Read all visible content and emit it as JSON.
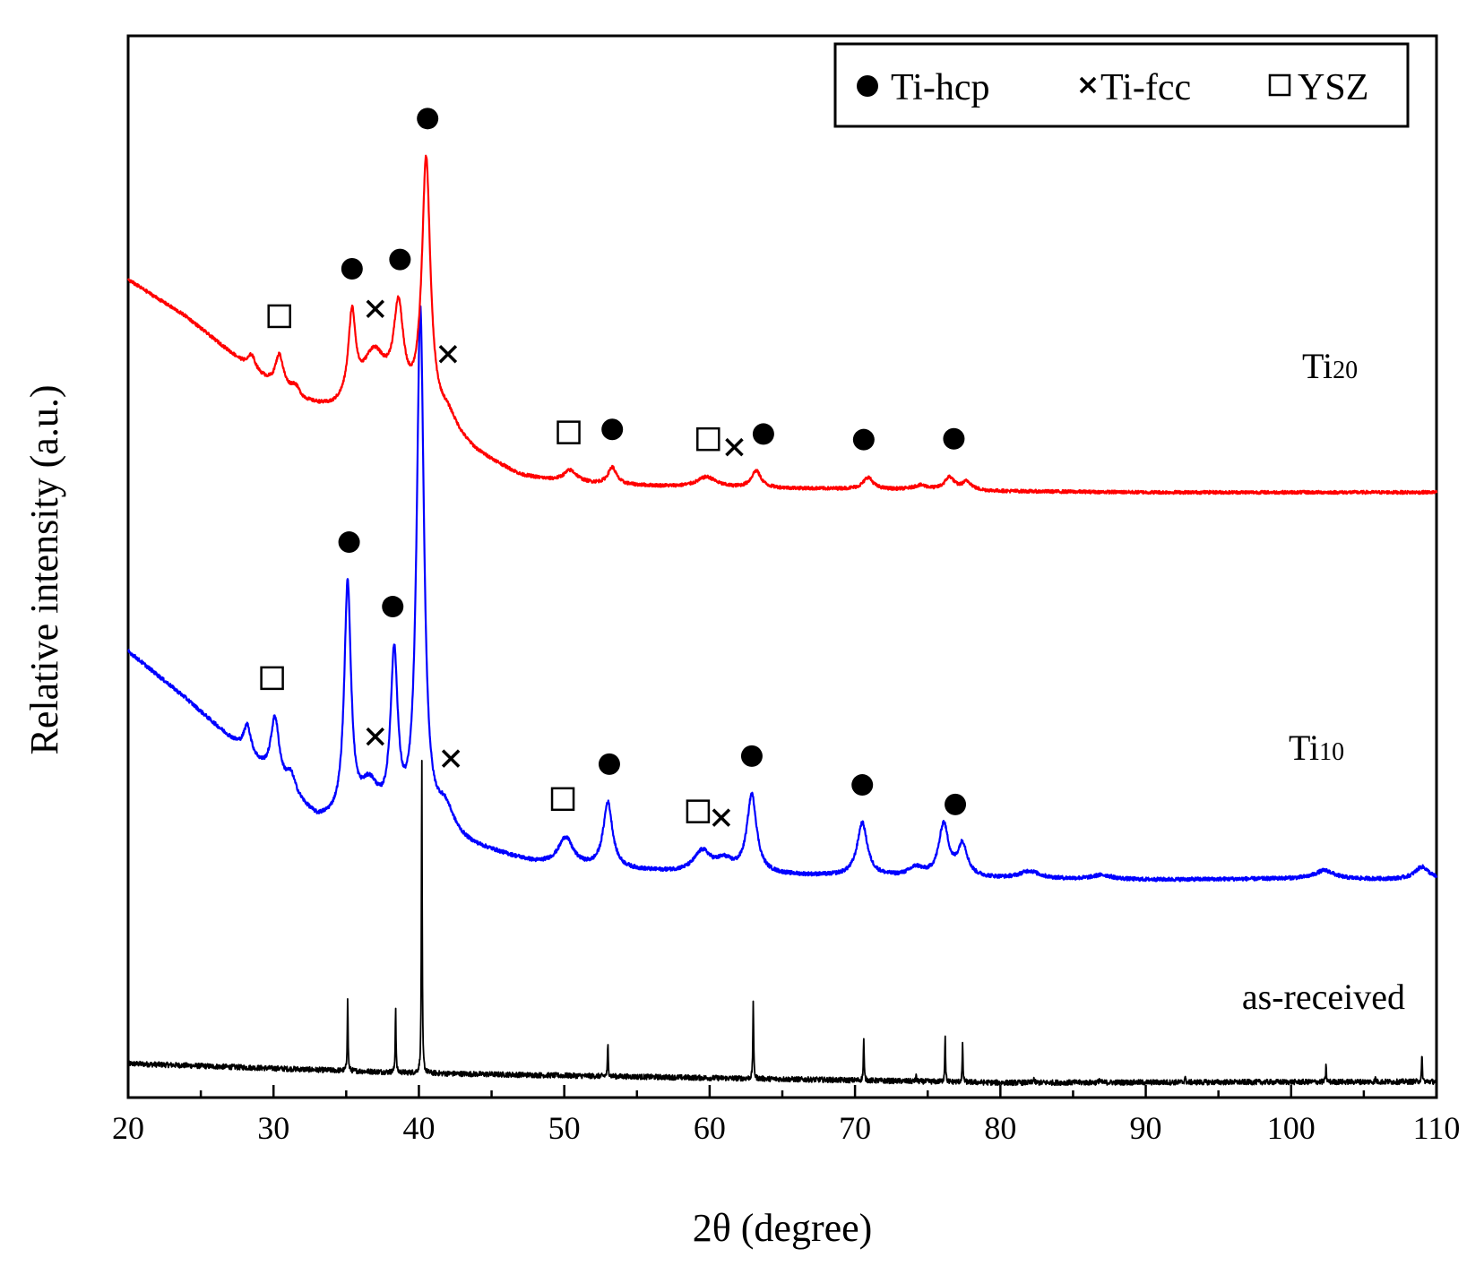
{
  "chart_data": {
    "type": "line",
    "title": "",
    "xlabel": "2θ (degree)",
    "ylabel": "Relative intensity (a.u.)",
    "xlim": [
      20,
      110
    ],
    "x_ticks": [
      20,
      30,
      40,
      50,
      60,
      70,
      80,
      90,
      100,
      110
    ],
    "x_minor_step": 5,
    "grid": false,
    "legend": {
      "placement": "top-right",
      "entries": [
        {
          "marker": "filled-circle",
          "label": "Ti-hcp"
        },
        {
          "marker": "cross",
          "label": "Ti-fcc"
        },
        {
          "marker": "open-square",
          "label": "YSZ"
        }
      ]
    },
    "series": [
      {
        "name": "as-received",
        "label_main": "as-received",
        "label_sub": "",
        "color": "#000000",
        "noise": 0.5,
        "width_scale": 0.25,
        "baseline": [
          [
            20,
            3.2
          ],
          [
            40,
            2.3
          ],
          [
            80,
            1.4
          ],
          [
            110,
            1.5
          ]
        ],
        "peaks": [
          [
            35.1,
            7.0,
            0.12
          ],
          [
            38.4,
            6.2,
            0.12
          ],
          [
            40.2,
            30.0,
            0.12
          ],
          [
            53.0,
            3.0,
            0.12
          ],
          [
            63.0,
            7.5,
            0.12
          ],
          [
            70.6,
            4.0,
            0.12
          ],
          [
            74.2,
            0.5,
            0.12
          ],
          [
            76.2,
            4.5,
            0.12
          ],
          [
            77.4,
            3.5,
            0.12
          ],
          [
            82.3,
            0.5,
            0.12
          ],
          [
            86.8,
            0.4,
            0.12
          ],
          [
            92.7,
            0.6,
            0.12
          ],
          [
            102.4,
            1.5,
            0.12
          ],
          [
            105.8,
            0.4,
            0.12
          ],
          [
            109.0,
            2.5,
            0.12
          ]
        ]
      },
      {
        "name": "Ti10",
        "label_main": "Ti",
        "label_sub": "10",
        "color": "#0000ff",
        "noise": 0.35,
        "width_scale": 1.0,
        "baseline": [
          [
            20,
            42.0
          ],
          [
            24,
            37.5
          ],
          [
            28,
            32.5
          ],
          [
            30,
            29.6
          ],
          [
            32,
            27.2
          ],
          [
            33,
            26.0
          ],
          [
            38,
            25.0
          ],
          [
            40,
            24.3
          ],
          [
            45,
            23.0
          ],
          [
            48,
            22.0
          ],
          [
            52,
            21.5
          ],
          [
            60,
            21.0
          ],
          [
            70,
            20.8
          ],
          [
            80,
            20.6
          ],
          [
            90,
            20.5
          ],
          [
            100,
            20.6
          ],
          [
            110,
            20.5
          ]
        ],
        "peaks": [
          [
            28.2,
            2.6,
            0.3
          ],
          [
            30.1,
            6.0,
            0.35
          ],
          [
            31.2,
            1.8,
            0.4
          ],
          [
            35.1,
            22.0,
            0.28
          ],
          [
            36.6,
            3.5,
            0.8
          ],
          [
            38.3,
            15.5,
            0.3
          ],
          [
            40.1,
            49.0,
            0.3
          ],
          [
            41.8,
            2.8,
            0.8
          ],
          [
            50.1,
            2.6,
            0.6
          ],
          [
            53.0,
            6.2,
            0.38
          ],
          [
            59.5,
            2.0,
            0.7
          ],
          [
            61.0,
            1.1,
            0.7
          ],
          [
            62.9,
            7.4,
            0.4
          ],
          [
            70.5,
            5.0,
            0.42
          ],
          [
            74.2,
            0.8,
            0.6
          ],
          [
            76.1,
            4.9,
            0.4
          ],
          [
            77.4,
            3.0,
            0.4
          ],
          [
            82.0,
            0.7,
            0.8
          ],
          [
            87.0,
            0.4,
            0.8
          ],
          [
            102.3,
            0.8,
            0.8
          ],
          [
            109.0,
            1.2,
            0.6
          ]
        ]
      },
      {
        "name": "Ti20",
        "label_main": "Ti",
        "label_sub": "20",
        "color": "#ff0000",
        "noise": 0.3,
        "width_scale": 1.0,
        "baseline": [
          [
            20,
            77.0
          ],
          [
            24,
            73.5
          ],
          [
            28,
            69.0
          ],
          [
            30,
            66.8
          ],
          [
            32,
            65.3
          ],
          [
            34,
            64.6
          ],
          [
            38,
            65.0
          ],
          [
            40,
            64.0
          ],
          [
            44,
            60.5
          ],
          [
            47,
            58.5
          ],
          [
            50,
            57.8
          ],
          [
            60,
            57.4
          ],
          [
            70,
            57.3
          ],
          [
            80,
            57.1
          ],
          [
            90,
            57.0
          ],
          [
            110,
            57.0
          ]
        ],
        "peaks": [
          [
            28.5,
            1.3,
            0.3
          ],
          [
            30.4,
            3.2,
            0.35
          ],
          [
            31.5,
            1.0,
            0.4
          ],
          [
            35.4,
            8.0,
            0.3
          ],
          [
            36.9,
            4.8,
            1.0
          ],
          [
            38.6,
            8.5,
            0.4
          ],
          [
            40.5,
            24.0,
            0.35
          ],
          [
            42.0,
            1.6,
            0.8
          ],
          [
            50.4,
            1.2,
            0.6
          ],
          [
            53.3,
            1.6,
            0.35
          ],
          [
            59.8,
            1.0,
            0.8
          ],
          [
            63.2,
            1.6,
            0.4
          ],
          [
            70.9,
            1.1,
            0.4
          ],
          [
            74.5,
            0.4,
            0.6
          ],
          [
            76.5,
            1.2,
            0.4
          ],
          [
            77.7,
            0.8,
            0.4
          ]
        ]
      }
    ],
    "annotations": [
      {
        "series": "Ti20",
        "marker": "open-square",
        "x": 30.4
      },
      {
        "series": "Ti20",
        "marker": "filled-circle",
        "x": 35.4
      },
      {
        "series": "Ti20",
        "marker": "cross",
        "x": 37.0
      },
      {
        "series": "Ti20",
        "marker": "filled-circle",
        "x": 38.7
      },
      {
        "series": "Ti20",
        "marker": "filled-circle",
        "x": 40.6
      },
      {
        "series": "Ti20",
        "marker": "cross",
        "x": 42.0
      },
      {
        "series": "Ti20",
        "marker": "open-square",
        "x": 50.3
      },
      {
        "series": "Ti20",
        "marker": "filled-circle",
        "x": 53.3
      },
      {
        "series": "Ti20",
        "marker": "open-square",
        "x": 59.9
      },
      {
        "series": "Ti20",
        "marker": "cross",
        "x": 61.7
      },
      {
        "series": "Ti20",
        "marker": "filled-circle",
        "x": 63.7
      },
      {
        "series": "Ti20",
        "marker": "filled-circle",
        "x": 70.6
      },
      {
        "series": "Ti20",
        "marker": "filled-circle",
        "x": 76.8
      },
      {
        "series": "Ti10",
        "marker": "open-square",
        "x": 29.9
      },
      {
        "series": "Ti10",
        "marker": "filled-circle",
        "x": 35.2
      },
      {
        "series": "Ti10",
        "marker": "cross",
        "x": 37.0
      },
      {
        "series": "Ti10",
        "marker": "filled-circle",
        "x": 38.2
      },
      {
        "series": "Ti10",
        "marker": "cross",
        "x": 42.2
      },
      {
        "series": "Ti10",
        "marker": "open-square",
        "x": 49.9
      },
      {
        "series": "Ti10",
        "marker": "filled-circle",
        "x": 53.1
      },
      {
        "series": "Ti10",
        "marker": "open-square",
        "x": 59.2
      },
      {
        "series": "Ti10",
        "marker": "cross",
        "x": 60.8
      },
      {
        "series": "Ti10",
        "marker": "filled-circle",
        "x": 62.9
      },
      {
        "series": "Ti10",
        "marker": "filled-circle",
        "x": 70.5
      },
      {
        "series": "Ti10",
        "marker": "filled-circle",
        "x": 76.9
      }
    ]
  }
}
